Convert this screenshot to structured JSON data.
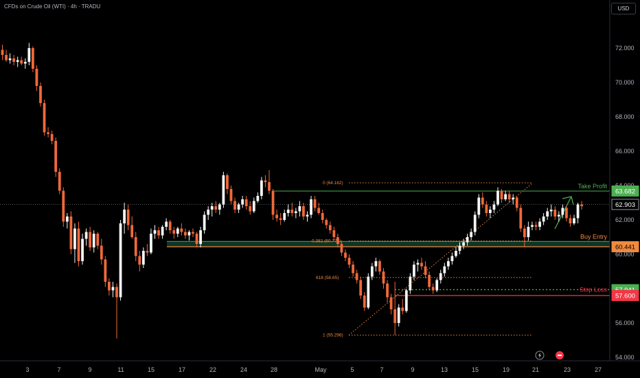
{
  "header": {
    "title": "CFDs on Crude Oil (WTI) · 4h · TRADU",
    "currency": "USD"
  },
  "colors": {
    "up": "#f5f7f7",
    "down": "#f0693a",
    "green": "#4caf50",
    "orange": "#f08a3e",
    "red": "#f23645",
    "zone": "#0d3b2a"
  },
  "chart_data": {
    "type": "candlestick",
    "title": "CFDs on Crude Oil (WTI) · 4h · TRADU",
    "ylim": [
      53.8,
      74.2
    ],
    "y_ticks": [
      54.0,
      56.0,
      58.0,
      60.0,
      62.0,
      64.0,
      66.0,
      68.0,
      70.0,
      72.0
    ],
    "y_tick_labels": [
      "54.000",
      "56.000",
      "58.000",
      "60.000",
      "62.000",
      "64.000",
      "66.000",
      "68.000",
      "70.000",
      "72.000"
    ],
    "x_labels": [
      "3",
      "7",
      "9",
      "11",
      "15",
      "17",
      "22",
      "24",
      "28",
      "May",
      "5",
      "7",
      "9",
      "13",
      "15",
      "19",
      "21",
      "23",
      "27"
    ],
    "current_price": "62.903",
    "levels": [
      {
        "name": "Take Profit",
        "value": 63.682,
        "label": "63.682",
        "color": "#4caf50"
      },
      {
        "name": "Buy Entry",
        "value": 60.441,
        "label": "60.441",
        "color": "#f08a3e"
      },
      {
        "name": "Stop Loss",
        "value": 57.941,
        "label": "57.941",
        "color": "#4caf50"
      },
      {
        "value": 57.6,
        "label": "57.600",
        "color": "#f23645"
      }
    ],
    "fib_levels": [
      {
        "ratio": "0",
        "value": 64.162,
        "text": "0 (64.162)"
      },
      {
        "ratio": "0.382",
        "value": 60.775,
        "text": "0.382 (60.775)"
      },
      {
        "ratio": "0.618",
        "value": 58.65,
        "text": "618 (58.65)"
      },
      {
        "ratio": "1",
        "value": 55.296,
        "text": "1 (55.296)"
      }
    ],
    "candles": [
      [
        71.9,
        72.2,
        71.3,
        71.6
      ],
      [
        71.6,
        71.9,
        71.2,
        71.3
      ],
      [
        71.3,
        71.7,
        71.1,
        71.4
      ],
      [
        71.4,
        71.6,
        71.0,
        71.2
      ],
      [
        71.2,
        71.5,
        70.9,
        71.3
      ],
      [
        71.3,
        71.5,
        71.0,
        71.1
      ],
      [
        71.1,
        71.4,
        70.8,
        71.2
      ],
      [
        71.2,
        72.3,
        71.0,
        72.0
      ],
      [
        72.0,
        72.1,
        70.6,
        70.8
      ],
      [
        70.8,
        71.0,
        69.5,
        69.8
      ],
      [
        69.8,
        70.0,
        68.6,
        68.8
      ],
      [
        68.8,
        69.0,
        66.9,
        67.1
      ],
      [
        67.1,
        67.4,
        66.8,
        67.0
      ],
      [
        67.0,
        67.2,
        66.4,
        66.6
      ],
      [
        66.6,
        66.8,
        64.5,
        64.8
      ],
      [
        64.8,
        65.0,
        63.5,
        63.7
      ],
      [
        63.7,
        63.9,
        61.6,
        61.9
      ],
      [
        61.9,
        62.4,
        61.5,
        62.2
      ],
      [
        62.2,
        62.5,
        60.0,
        60.3
      ],
      [
        60.3,
        61.8,
        59.5,
        61.5
      ],
      [
        61.5,
        61.9,
        59.3,
        59.6
      ],
      [
        59.6,
        61.2,
        59.4,
        60.9
      ],
      [
        60.9,
        61.5,
        60.5,
        61.3
      ],
      [
        61.3,
        61.6,
        60.2,
        60.4
      ],
      [
        60.4,
        61.4,
        60.1,
        61.2
      ],
      [
        61.2,
        61.3,
        60.3,
        60.5
      ],
      [
        60.5,
        60.9,
        59.4,
        59.7
      ],
      [
        59.7,
        59.9,
        58.1,
        58.4
      ],
      [
        58.4,
        58.6,
        57.6,
        57.9
      ],
      [
        57.9,
        58.4,
        57.5,
        58.1
      ],
      [
        58.1,
        58.3,
        55.1,
        57.5
      ],
      [
        57.5,
        62.0,
        57.3,
        61.8
      ],
      [
        61.8,
        63.0,
        61.2,
        62.6
      ],
      [
        62.6,
        62.9,
        61.4,
        61.7
      ],
      [
        61.7,
        62.2,
        60.9,
        61.0
      ],
      [
        61.0,
        61.3,
        59.6,
        59.9
      ],
      [
        59.9,
        60.2,
        59.0,
        59.4
      ],
      [
        59.4,
        60.4,
        59.2,
        60.2
      ],
      [
        60.2,
        60.6,
        59.9,
        60.1
      ],
      [
        60.1,
        61.5,
        60.0,
        61.2
      ],
      [
        61.2,
        61.7,
        60.9,
        61.4
      ],
      [
        61.4,
        61.6,
        60.9,
        61.1
      ],
      [
        61.1,
        61.7,
        60.9,
        61.6
      ],
      [
        61.6,
        62.1,
        61.4,
        61.9
      ],
      [
        61.9,
        62.0,
        61.2,
        61.4
      ],
      [
        61.4,
        61.6,
        60.9,
        61.2
      ],
      [
        61.2,
        61.6,
        61.0,
        61.5
      ],
      [
        61.5,
        61.8,
        61.1,
        61.3
      ],
      [
        61.3,
        61.5,
        60.9,
        61.1
      ],
      [
        61.1,
        61.4,
        60.8,
        61.3
      ],
      [
        61.3,
        61.5,
        61.0,
        61.2
      ],
      [
        61.2,
        61.3,
        60.4,
        60.6
      ],
      [
        60.6,
        61.6,
        60.4,
        61.4
      ],
      [
        61.4,
        62.5,
        61.2,
        62.3
      ],
      [
        62.3,
        62.8,
        62.0,
        62.6
      ],
      [
        62.6,
        63.0,
        62.2,
        62.8
      ],
      [
        62.8,
        63.1,
        62.4,
        62.6
      ],
      [
        62.6,
        63.0,
        62.3,
        62.9
      ],
      [
        62.9,
        64.8,
        62.7,
        64.6
      ],
      [
        64.6,
        64.7,
        63.5,
        63.8
      ],
      [
        63.8,
        64.0,
        62.9,
        63.1
      ],
      [
        63.1,
        63.3,
        62.4,
        62.6
      ],
      [
        62.6,
        63.0,
        62.4,
        62.9
      ],
      [
        62.9,
        63.4,
        62.7,
        63.2
      ],
      [
        63.2,
        63.4,
        62.6,
        62.8
      ],
      [
        62.8,
        63.1,
        62.3,
        62.5
      ],
      [
        62.5,
        63.3,
        62.4,
        63.1
      ],
      [
        63.1,
        63.6,
        63.0,
        63.4
      ],
      [
        63.4,
        64.5,
        63.2,
        64.3
      ],
      [
        64.3,
        64.6,
        63.9,
        64.2
      ],
      [
        64.2,
        64.9,
        63.5,
        63.7
      ],
      [
        63.7,
        63.8,
        62.0,
        62.3
      ],
      [
        62.3,
        62.6,
        61.9,
        62.1
      ],
      [
        62.1,
        62.4,
        61.7,
        62.0
      ],
      [
        62.0,
        62.6,
        61.9,
        62.4
      ],
      [
        62.4,
        62.9,
        62.2,
        62.6
      ],
      [
        62.6,
        63.0,
        62.2,
        62.4
      ],
      [
        62.4,
        62.7,
        62.1,
        62.5
      ],
      [
        62.5,
        63.1,
        62.2,
        62.8
      ],
      [
        62.8,
        63.0,
        62.0,
        62.2
      ],
      [
        62.2,
        62.5,
        61.9,
        62.3
      ],
      [
        62.3,
        63.4,
        62.1,
        63.2
      ],
      [
        63.2,
        63.4,
        62.5,
        62.7
      ],
      [
        62.7,
        63.0,
        62.3,
        62.4
      ],
      [
        62.4,
        62.6,
        61.8,
        62.0
      ],
      [
        62.0,
        62.1,
        61.5,
        61.7
      ],
      [
        61.7,
        61.9,
        61.2,
        61.4
      ],
      [
        61.4,
        61.6,
        60.8,
        61.0
      ],
      [
        61.0,
        61.2,
        60.4,
        60.6
      ],
      [
        60.6,
        60.8,
        59.9,
        60.1
      ],
      [
        60.1,
        60.3,
        59.6,
        59.8
      ],
      [
        59.8,
        60.0,
        59.2,
        59.4
      ],
      [
        59.4,
        59.6,
        58.7,
        58.9
      ],
      [
        58.9,
        59.1,
        58.3,
        58.5
      ],
      [
        58.5,
        58.7,
        57.4,
        57.6
      ],
      [
        57.6,
        57.8,
        56.7,
        56.9
      ],
      [
        56.9,
        58.9,
        56.8,
        58.7
      ],
      [
        58.7,
        59.5,
        58.5,
        59.3
      ],
      [
        59.3,
        59.8,
        59.0,
        59.6
      ],
      [
        59.6,
        59.7,
        58.8,
        59.0
      ],
      [
        59.0,
        59.2,
        58.0,
        58.3
      ],
      [
        58.3,
        58.5,
        57.2,
        57.5
      ],
      [
        57.5,
        57.7,
        56.5,
        56.8
      ],
      [
        56.8,
        58.4,
        55.3,
        56.0
      ],
      [
        56.0,
        57.1,
        55.8,
        56.9
      ],
      [
        56.9,
        57.4,
        56.5,
        56.7
      ],
      [
        56.7,
        58.0,
        56.6,
        57.9
      ],
      [
        57.9,
        58.9,
        57.7,
        58.7
      ],
      [
        58.7,
        59.6,
        58.5,
        59.4
      ],
      [
        59.4,
        59.7,
        59.0,
        59.5
      ],
      [
        59.5,
        59.8,
        59.1,
        59.3
      ],
      [
        59.3,
        59.6,
        58.6,
        58.8
      ],
      [
        58.8,
        59.0,
        57.9,
        58.1
      ],
      [
        58.1,
        58.3,
        57.7,
        57.9
      ],
      [
        57.9,
        58.6,
        57.8,
        58.5
      ],
      [
        58.5,
        59.1,
        58.3,
        58.9
      ],
      [
        58.9,
        59.5,
        58.7,
        59.3
      ],
      [
        59.3,
        59.8,
        59.1,
        59.6
      ],
      [
        59.6,
        60.1,
        59.4,
        59.9
      ],
      [
        59.9,
        60.4,
        59.8,
        60.2
      ],
      [
        60.2,
        60.7,
        60.0,
        60.5
      ],
      [
        60.5,
        60.9,
        60.3,
        60.7
      ],
      [
        60.7,
        61.2,
        60.5,
        61.0
      ],
      [
        61.0,
        61.5,
        60.8,
        61.3
      ],
      [
        61.3,
        62.5,
        61.1,
        62.3
      ],
      [
        62.3,
        63.5,
        62.1,
        63.3
      ],
      [
        63.3,
        63.6,
        62.7,
        62.9
      ],
      [
        62.9,
        63.1,
        62.2,
        62.4
      ],
      [
        62.4,
        62.8,
        62.1,
        62.6
      ],
      [
        62.6,
        63.1,
        62.4,
        62.9
      ],
      [
        62.9,
        63.9,
        62.8,
        63.7
      ],
      [
        63.7,
        63.8,
        63.0,
        63.2
      ],
      [
        63.2,
        63.7,
        63.1,
        63.5
      ],
      [
        63.5,
        63.7,
        63.0,
        63.2
      ],
      [
        63.2,
        63.5,
        62.9,
        63.3
      ],
      [
        63.3,
        63.4,
        62.5,
        62.7
      ],
      [
        62.7,
        62.9,
        61.3,
        61.5
      ],
      [
        61.5,
        61.7,
        60.4,
        61.0
      ],
      [
        61.0,
        61.9,
        60.8,
        61.6
      ],
      [
        61.6,
        61.9,
        61.4,
        61.7
      ],
      [
        61.7,
        61.9,
        61.4,
        61.6
      ],
      [
        61.6,
        62.1,
        61.4,
        61.9
      ],
      [
        61.9,
        62.4,
        61.7,
        62.2
      ],
      [
        62.2,
        62.7,
        62.0,
        62.5
      ],
      [
        62.5,
        62.9,
        62.2,
        62.6
      ],
      [
        62.6,
        62.8,
        62.0,
        62.2
      ],
      [
        62.2,
        62.5,
        61.9,
        62.3
      ],
      [
        62.3,
        62.9,
        62.1,
        62.7
      ],
      [
        62.7,
        62.8,
        61.9,
        62.1
      ],
      [
        62.1,
        62.3,
        61.6,
        61.8
      ],
      [
        61.8,
        62.3,
        61.7,
        62.1
      ],
      [
        62.1,
        63.0,
        61.8,
        62.9
      ],
      [
        62.9,
        63.1,
        62.6,
        62.8
      ]
    ]
  },
  "drawing": {
    "arrow": "green-up-arrow"
  }
}
